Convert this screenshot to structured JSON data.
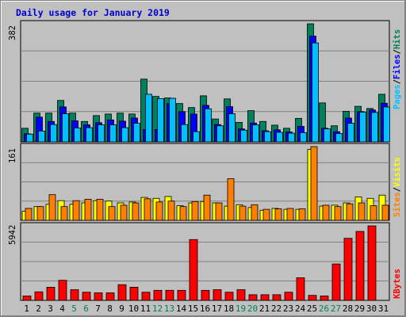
{
  "title": "Daily usage for January 2019",
  "colors": {
    "hits": "#00805c",
    "files": "#0000ff",
    "pages": "#00c0ff",
    "visits": "#ffff00",
    "sites": "#ff8000",
    "kbytes": "#ff0000",
    "weekend_day_label": "#00805c",
    "weekday_label": "#000000",
    "background": "#c0c0c0"
  },
  "legend": {
    "top": [
      "Pages",
      "Files",
      "Hits"
    ],
    "middle": [
      "Sites",
      "Visits"
    ],
    "bottom": [
      "KBytes"
    ],
    "separator": "/"
  },
  "chart_data": [
    {
      "type": "bar",
      "panel": "hits-files-pages",
      "categories": [
        "1",
        "2",
        "3",
        "4",
        "5",
        "6",
        "7",
        "8",
        "9",
        "10",
        "11",
        "12",
        "13",
        "14",
        "15",
        "16",
        "17",
        "18",
        "19",
        "20",
        "21",
        "22",
        "23",
        "24",
        "25",
        "26",
        "27",
        "28",
        "29",
        "30",
        "31"
      ],
      "ymax_label": "382",
      "ylim": [
        0,
        382
      ],
      "series": [
        {
          "name": "Hits",
          "values": [
            44,
            93,
            93,
            134,
            93,
            66,
            85,
            90,
            93,
            90,
            203,
            147,
            142,
            124,
            111,
            149,
            74,
            139,
            63,
            101,
            66,
            54,
            44,
            76,
            382,
            126,
            52,
            99,
            115,
            108,
            154
          ]
        },
        {
          "name": "Files",
          "values": [
            26,
            80,
            66,
            113,
            68,
            55,
            62,
            71,
            67,
            77,
            40,
            40,
            124,
            98,
            90,
            118,
            56,
            114,
            42,
            61,
            36,
            39,
            32,
            50,
            342,
            44,
            33,
            77,
            98,
            103,
            125
          ]
        },
        {
          "name": "Pages",
          "values": [
            25,
            35,
            56,
            91,
            45,
            46,
            55,
            55,
            46,
            60,
            154,
            140,
            141,
            56,
            33,
            107,
            52,
            91,
            38,
            55,
            33,
            31,
            28,
            30,
            320,
            42,
            27,
            60,
            96,
            95,
            113
          ]
        }
      ]
    },
    {
      "type": "bar",
      "panel": "visits-sites",
      "categories": [
        "1",
        "2",
        "3",
        "4",
        "5",
        "6",
        "7",
        "8",
        "9",
        "10",
        "11",
        "12",
        "13",
        "14",
        "15",
        "16",
        "17",
        "18",
        "19",
        "20",
        "21",
        "22",
        "23",
        "24",
        "25",
        "26",
        "27",
        "28",
        "29",
        "30",
        "31"
      ],
      "ymax_label": "161",
      "ylim": [
        0,
        161
      ],
      "series": [
        {
          "name": "Visits",
          "values": [
            20,
            30,
            35,
            43,
            35,
            38,
            43,
            42,
            38,
            40,
            50,
            48,
            52,
            32,
            38,
            41,
            38,
            31,
            34,
            28,
            22,
            26,
            24,
            24,
            155,
            31,
            33,
            38,
            51,
            48,
            55
          ]
        },
        {
          "name": "Sites",
          "values": [
            26,
            30,
            56,
            30,
            43,
            46,
            46,
            30,
            33,
            38,
            47,
            40,
            42,
            30,
            41,
            55,
            38,
            91,
            31,
            34,
            24,
            25,
            26,
            25,
            161,
            33,
            30,
            36,
            38,
            32,
            33
          ]
        }
      ]
    },
    {
      "type": "bar",
      "panel": "kbytes",
      "categories": [
        "1",
        "2",
        "3",
        "4",
        "5",
        "6",
        "7",
        "8",
        "9",
        "10",
        "11",
        "12",
        "13",
        "14",
        "15",
        "16",
        "17",
        "18",
        "19",
        "20",
        "21",
        "22",
        "23",
        "24",
        "25",
        "26",
        "27",
        "28",
        "29",
        "30",
        "31"
      ],
      "ymax_label": "5942",
      "ylim": [
        0,
        5942
      ],
      "series": [
        {
          "name": "KBytes",
          "values": [
            350,
            680,
            1050,
            1600,
            850,
            650,
            600,
            600,
            1250,
            1050,
            650,
            800,
            800,
            800,
            4850,
            800,
            850,
            650,
            850,
            450,
            450,
            450,
            650,
            1800,
            400,
            350,
            2900,
            4950,
            5500,
            5942,
            0
          ]
        }
      ]
    }
  ],
  "x_label_colors": [
    "0",
    "0",
    "0",
    "0",
    "1",
    "1",
    "0",
    "0",
    "0",
    "0",
    "0",
    "1",
    "1",
    "0",
    "0",
    "0",
    "0",
    "0",
    "1",
    "1",
    "0",
    "0",
    "0",
    "0",
    "0",
    "1",
    "1",
    "0",
    "0",
    "0",
    "0"
  ]
}
